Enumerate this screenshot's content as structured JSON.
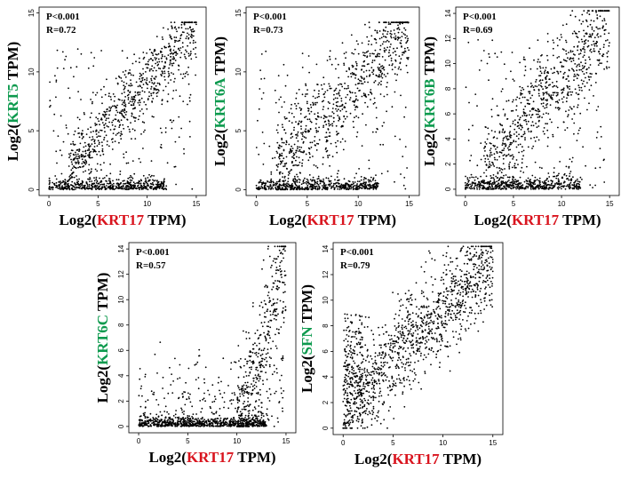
{
  "colors": {
    "gene_green": "#0d9a4e",
    "krt17_red": "#d9141e",
    "point": "#000000"
  },
  "chart_data": [
    {
      "type": "scatter",
      "gene": "KRT5",
      "xlabel": {
        "prefix": "Log2(",
        "gene": "KRT17",
        "suffix": " TPM)"
      },
      "ylabel": {
        "prefix": "Log2(",
        "gene": "KRT5",
        "suffix": " TPM)"
      },
      "p_text": "P<0.001",
      "r_text": "R=0.72",
      "r": 0.72,
      "xlim": [
        -1,
        16
      ],
      "ylim": [
        -0.5,
        15.5
      ],
      "xticks": [
        0,
        5,
        10,
        15
      ],
      "xtick_labels": [
        "0",
        "5",
        "10",
        "15"
      ],
      "yticks": [
        0,
        5,
        10,
        15
      ],
      "ytick_labels": [
        "0",
        "5",
        "10",
        "15"
      ],
      "grid": false
    },
    {
      "type": "scatter",
      "gene": "KRT6A",
      "xlabel": {
        "prefix": "Log2(",
        "gene": "KRT17",
        "suffix": " TPM)"
      },
      "ylabel": {
        "prefix": "Log2(",
        "gene": "KRT6A",
        "suffix": " TPM)"
      },
      "p_text": "P<0.001",
      "r_text": "R=0.73",
      "r": 0.73,
      "xlim": [
        -1,
        16
      ],
      "ylim": [
        -0.5,
        15.5
      ],
      "xticks": [
        0,
        5,
        10,
        15
      ],
      "xtick_labels": [
        "0",
        "5",
        "10",
        "15"
      ],
      "yticks": [
        0,
        5,
        10,
        15
      ],
      "ytick_labels": [
        "0",
        "5",
        "10",
        "15"
      ],
      "grid": false
    },
    {
      "type": "scatter",
      "gene": "KRT6B",
      "xlabel": {
        "prefix": "Log2(",
        "gene": "KRT17",
        "suffix": " TPM)"
      },
      "ylabel": {
        "prefix": "Log2(",
        "gene": "KRT6B",
        "suffix": " TPM)"
      },
      "p_text": "P<0.001",
      "r_text": "R=0.69",
      "r": 0.69,
      "xlim": [
        -1,
        16
      ],
      "ylim": [
        -0.5,
        14.5
      ],
      "xticks": [
        0,
        5,
        10,
        15
      ],
      "xtick_labels": [
        "0",
        "5",
        "10",
        "15"
      ],
      "yticks": [
        0,
        2,
        4,
        6,
        8,
        10,
        12,
        14
      ],
      "ytick_labels": [
        "0",
        "2",
        "4",
        "6",
        "8",
        "10",
        "12",
        "14"
      ],
      "grid": false
    },
    {
      "type": "scatter",
      "gene": "KRT6C",
      "xlabel": {
        "prefix": "Log2(",
        "gene": "KRT17",
        "suffix": " TPM)"
      },
      "ylabel": {
        "prefix": "Log2(",
        "gene": "KRT6C",
        "suffix": " TPM)"
      },
      "p_text": "P<0.001",
      "r_text": "R=0.57",
      "r": 0.57,
      "xlim": [
        -1,
        16
      ],
      "ylim": [
        -0.5,
        14.5
      ],
      "xticks": [
        0,
        5,
        10,
        15
      ],
      "xtick_labels": [
        "0",
        "5",
        "10",
        "15"
      ],
      "yticks": [
        0,
        2,
        4,
        6,
        8,
        10,
        12,
        14
      ],
      "ytick_labels": [
        "0",
        "2",
        "4",
        "6",
        "8",
        "10",
        "12",
        "14"
      ],
      "grid": false
    },
    {
      "type": "scatter",
      "gene": "SFN",
      "xlabel": {
        "prefix": "Log2(",
        "gene": "KRT17",
        "suffix": " TPM)"
      },
      "ylabel": {
        "prefix": "Log2(",
        "gene": "SFN",
        "suffix": " TPM)"
      },
      "p_text": "P<0.001",
      "r_text": "R=0.79",
      "r": 0.79,
      "xlim": [
        -1,
        16
      ],
      "ylim": [
        -0.5,
        14.5
      ],
      "xticks": [
        0,
        5,
        10,
        15
      ],
      "xtick_labels": [
        "0",
        "5",
        "10",
        "15"
      ],
      "yticks": [
        0,
        2,
        4,
        6,
        8,
        10,
        12,
        14
      ],
      "ytick_labels": [
        "0",
        "2",
        "4",
        "6",
        "8",
        "10",
        "12",
        "14"
      ],
      "grid": false
    }
  ]
}
